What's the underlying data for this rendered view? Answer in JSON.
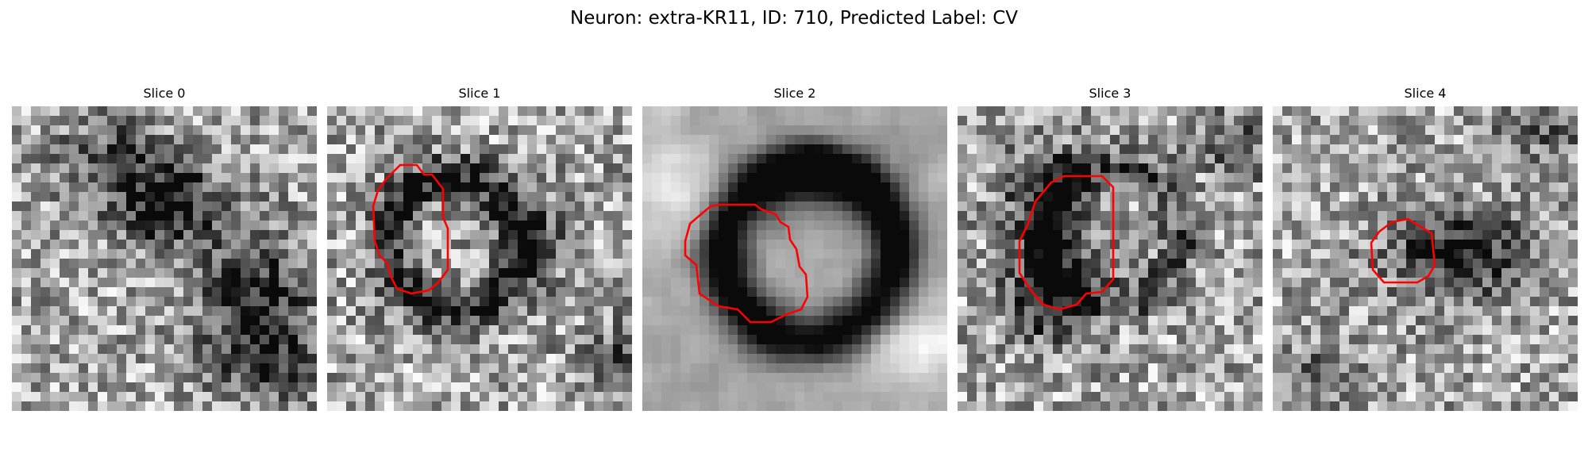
{
  "figure": {
    "title": "Neuron: extra-KR11, ID: 710, Predicted Label: CV"
  },
  "panels": [
    {
      "title": "Slice 0",
      "has_contour": false
    },
    {
      "title": "Slice 1",
      "has_contour": true
    },
    {
      "title": "Slice 2",
      "has_contour": true
    },
    {
      "title": "Slice 3",
      "has_contour": true
    },
    {
      "title": "Slice 4",
      "has_contour": true
    }
  ],
  "colors": {
    "contour": "#ff0000",
    "background": "#ffffff"
  },
  "colormap": "gray"
}
